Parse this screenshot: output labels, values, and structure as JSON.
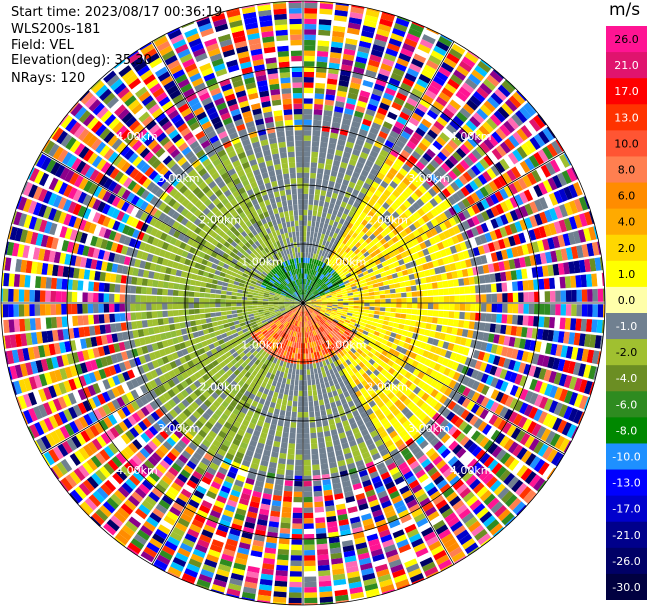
{
  "header": {
    "start_time": "Start time: 2023/08/17 00:36:19",
    "instrument": "WLS200s-181",
    "field": "Field: VEL",
    "elevation": "Elevation(deg): 35.30",
    "nrays": "NRays: 120"
  },
  "chart_data": {
    "type": "heatmap",
    "projection": "polar PPI scan",
    "field": "VEL",
    "units": "m/s",
    "n_rays": 120,
    "range_rings_km": [
      1.0,
      2.0,
      3.0,
      4.0
    ],
    "ring_labels": [
      "1.00km",
      "2.00km",
      "3.00km",
      "4.00km"
    ],
    "radial_lines_deg": [
      0,
      30,
      60,
      90,
      120,
      150,
      180,
      210,
      240,
      270,
      300,
      330
    ],
    "colorbar": {
      "title": "m/s",
      "tick_labels": [
        "26.0",
        "21.0",
        "17.0",
        "13.0",
        "10.0",
        "8.0",
        "6.0",
        "4.0",
        "2.0",
        "1.0",
        "0.0",
        "-1.0",
        "-2.0",
        "-4.0",
        "-6.0",
        "-8.0",
        "-10.0",
        "-13.0",
        "-17.0",
        "-21.0",
        "-26.0",
        "-30.0"
      ],
      "colors": [
        "#ff1493",
        "#e0146e",
        "#ff0000",
        "#ff3300",
        "#ff5533",
        "#ff7f50",
        "#ff8c00",
        "#ffaa00",
        "#ffd700",
        "#ffff00",
        "#ffffaa",
        "#708090",
        "#a0c030",
        "#6b8e23",
        "#2e8b20",
        "#008800",
        "#1e90ff",
        "#0000ff",
        "#0000cd",
        "#00008b",
        "#000066",
        "#000040"
      ]
    },
    "regions": [
      {
        "range_km": [
          0,
          0.8
        ],
        "azimuth_deg": [
          -70,
          70
        ],
        "value_band": "-6 to -8"
      },
      {
        "range_km": [
          0,
          1.0
        ],
        "azimuth_deg": [
          120,
          240
        ],
        "value_band": "8 to 13"
      },
      {
        "range_km": [
          1.0,
          3.0
        ],
        "azimuth_deg": [
          30,
          150
        ],
        "value_band": "1 to 6"
      },
      {
        "range_km": [
          1.0,
          3.0
        ],
        "azimuth_deg": [
          200,
          340
        ],
        "value_band": "-1 to -4"
      },
      {
        "range_km": [
          3.2,
          5.0
        ],
        "azimuth_deg": [
          0,
          360
        ],
        "value_band": "noise"
      }
    ]
  }
}
